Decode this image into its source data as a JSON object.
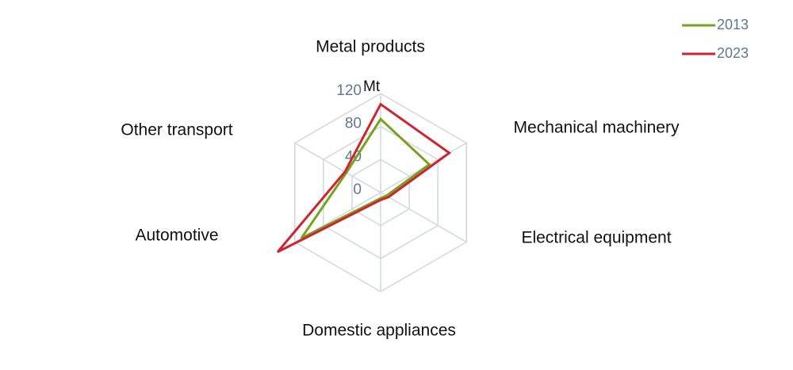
{
  "chart_data": {
    "type": "radar",
    "categories": [
      "Metal products",
      "Mechanical machinery",
      "Electrical equipment",
      "Domestic appliances",
      "Automotive",
      "Other transport"
    ],
    "unit": "Mt",
    "ylim": [
      0,
      120
    ],
    "yticks": [
      0,
      40,
      80,
      120
    ],
    "grid": true,
    "legend": "top-right",
    "series": [
      {
        "name": "2013",
        "color": "#76a21e",
        "values": [
          89,
          68,
          8,
          7,
          111,
          48
        ]
      },
      {
        "name": "2023",
        "color": "#cf2430",
        "values": [
          107,
          96,
          11,
          9,
          144,
          50
        ]
      }
    ]
  }
}
